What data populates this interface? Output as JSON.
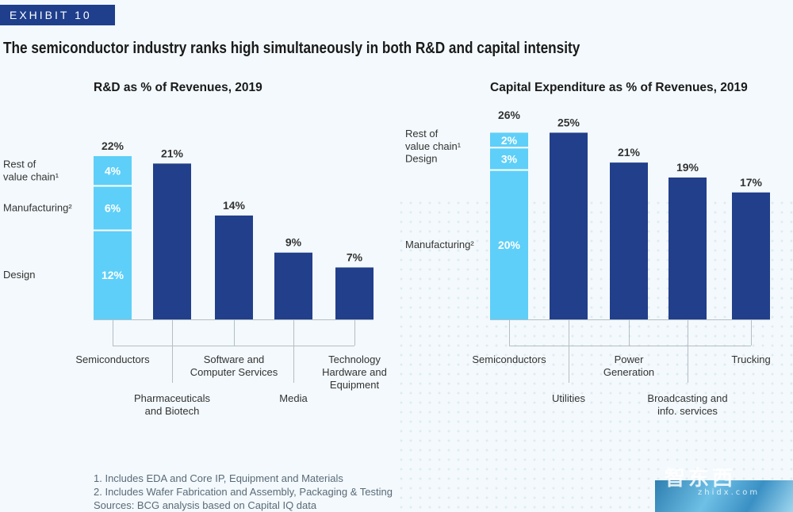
{
  "header": {
    "exhibit": "EXHIBIT 10",
    "title": "The semiconductor industry ranks high simultaneously in both R&D and capital intensity"
  },
  "chart_data": [
    {
      "type": "bar",
      "title": "R&D as % of Revenues, 2019",
      "categories": [
        "Semiconductors",
        "Pharmaceuticals and Biotech",
        "Software and Computer Services",
        "Media",
        "Technology Hardware and Equipment"
      ],
      "category_labels": [
        [
          "Semiconductors"
        ],
        [
          "Pharmaceuticals",
          "and Biotech"
        ],
        [
          "Software and",
          "Computer Services"
        ],
        [
          "Media"
        ],
        [
          "Technology",
          "Hardware and",
          "Equipment"
        ]
      ],
      "values": [
        22,
        21,
        14,
        9,
        7
      ],
      "value_labels": [
        "22%",
        "21%",
        "14%",
        "9%",
        "7%"
      ],
      "stacked_first": {
        "segments": [
          {
            "name": "Design",
            "value": 12,
            "label": "12%"
          },
          {
            "name": "Manufacturing²",
            "value": 6,
            "label": "6%"
          },
          {
            "name": "Rest of value chain¹",
            "value": 4,
            "label": "4%"
          }
        ]
      },
      "segment_legend": [
        [
          "Design"
        ],
        [
          "Manufacturing²"
        ],
        [
          "Rest of",
          "value chain¹"
        ]
      ],
      "ylim": [
        0,
        22
      ]
    },
    {
      "type": "bar",
      "title": "Capital Expenditure as % of Revenues, 2019",
      "categories": [
        "Semiconductors",
        "Utilities",
        "Power Generation",
        "Broadcasting and info. services",
        "Trucking"
      ],
      "category_labels": [
        [
          "Semiconductors"
        ],
        [
          "Utilities"
        ],
        [
          "Power",
          "Generation"
        ],
        [
          "Broadcasting and",
          "info. services"
        ],
        [
          "Trucking"
        ]
      ],
      "values": [
        26,
        25,
        21,
        19,
        17
      ],
      "value_labels": [
        "26%",
        "25%",
        "21%",
        "19%",
        "17%"
      ],
      "stacked_first": {
        "segments": [
          {
            "name": "Manufacturing²",
            "value": 20,
            "label": "20%"
          },
          {
            "name": "Design",
            "value": 3,
            "label": "3%"
          },
          {
            "name": "Rest of value chain¹",
            "value": 2,
            "label": "2%"
          }
        ]
      },
      "segment_legend": [
        [
          "Manufacturing²"
        ],
        [
          "Design"
        ],
        [
          "Rest of",
          "value chain¹"
        ]
      ],
      "ylim": [
        0,
        26
      ]
    }
  ],
  "colors": {
    "dark_bar": "#213f8a",
    "light_bar": "#5ecff8",
    "axis": "#b5bec6"
  },
  "footnotes": [
    "1. Includes EDA and Core IP, Equipment and Materials",
    "2. Includes Wafer Fabrication and Assembly, Packaging & Testing",
    "Sources: BCG analysis based on Capital IQ data"
  ],
  "watermark": {
    "text": "智东西",
    "sub": "zhidx.com"
  }
}
